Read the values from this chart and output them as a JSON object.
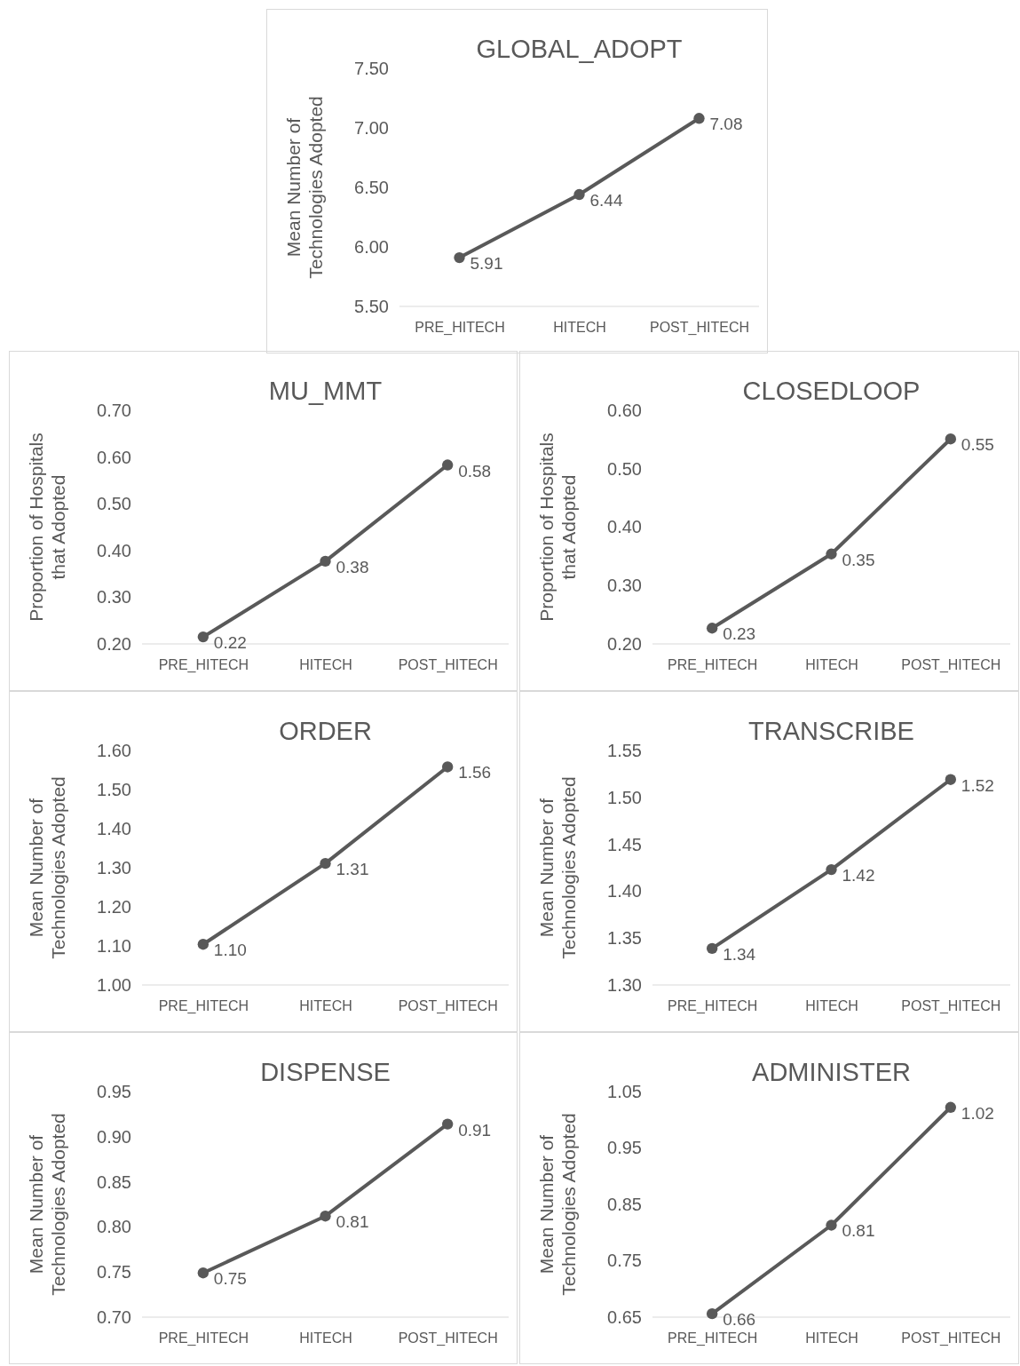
{
  "chart_data": [
    {
      "type": "line",
      "title": "GLOBAL_ADOPT",
      "ylabel": "Mean Number of Technologies Adopted",
      "categories": [
        "PRE_HITECH",
        "HITECH",
        "POST_HITECH"
      ],
      "series": [
        {
          "color": "#595959",
          "values": [
            5.91,
            6.44,
            7.08
          ],
          "value_labels": [
            "5.91",
            "6.44",
            "7.08"
          ]
        }
      ],
      "ylim": [
        5.5,
        7.5
      ],
      "yticks": [
        {
          "value": 5.5,
          "label": "5.50"
        },
        {
          "value": 6,
          "label": "6.00"
        },
        {
          "value": 6.5,
          "label": "6.50"
        },
        {
          "value": 7,
          "label": "7.00"
        },
        {
          "value": 7.5,
          "label": "7.50"
        }
      ],
      "marker": "circle",
      "grid": false
    },
    {
      "type": "line",
      "title": "MU_MMT",
      "ylabel": "Proportion of Hospitals that Adopted",
      "categories": [
        "PRE_HITECH",
        "HITECH",
        "POST_HITECH"
      ],
      "series": [
        {
          "color": "#595959",
          "values": [
            0.215,
            0.377,
            0.583
          ],
          "value_labels": [
            "0.22",
            "0.38",
            "0.58"
          ]
        }
      ],
      "ylim": [
        0.2,
        0.7
      ],
      "yticks": [
        {
          "value": 0.2,
          "label": "0.20"
        },
        {
          "value": 0.3,
          "label": "0.30"
        },
        {
          "value": 0.4,
          "label": "0.40"
        },
        {
          "value": 0.5,
          "label": "0.50"
        },
        {
          "value": 0.6,
          "label": "0.60"
        },
        {
          "value": 0.7,
          "label": "0.70"
        }
      ],
      "marker": "circle",
      "grid": false
    },
    {
      "type": "line",
      "title": "CLOSEDLOOP",
      "ylabel": "Proportion of Hospitals that Adopted",
      "categories": [
        "PRE_HITECH",
        "HITECH",
        "POST_HITECH"
      ],
      "series": [
        {
          "color": "#595959",
          "values": [
            0.227,
            0.354,
            0.551
          ],
          "value_labels": [
            "0.23",
            "0.35",
            "0.55"
          ]
        }
      ],
      "ylim": [
        0.2,
        0.6
      ],
      "yticks": [
        {
          "value": 0.2,
          "label": "0.20"
        },
        {
          "value": 0.3,
          "label": "0.30"
        },
        {
          "value": 0.4,
          "label": "0.40"
        },
        {
          "value": 0.5,
          "label": "0.50"
        },
        {
          "value": 0.6,
          "label": "0.60"
        }
      ],
      "marker": "circle",
      "grid": false
    },
    {
      "type": "line",
      "title": "ORDER",
      "ylabel": "Mean Number of Technologies Adopted",
      "categories": [
        "PRE_HITECH",
        "HITECH",
        "POST_HITECH"
      ],
      "series": [
        {
          "color": "#595959",
          "values": [
            1.104,
            1.311,
            1.558
          ],
          "value_labels": [
            "1.10",
            "1.31",
            "1.56"
          ]
        }
      ],
      "ylim": [
        1.0,
        1.6
      ],
      "yticks": [
        {
          "value": 1.0,
          "label": "1.00"
        },
        {
          "value": 1.1,
          "label": "1.10"
        },
        {
          "value": 1.2,
          "label": "1.20"
        },
        {
          "value": 1.3,
          "label": "1.30"
        },
        {
          "value": 1.4,
          "label": "1.40"
        },
        {
          "value": 1.5,
          "label": "1.50"
        },
        {
          "value": 1.6,
          "label": "1.60"
        }
      ],
      "marker": "circle",
      "grid": false
    },
    {
      "type": "line",
      "title": "TRANSCRIBE",
      "ylabel": "Mean Number of Technologies Adopted",
      "categories": [
        "PRE_HITECH",
        "HITECH",
        "POST_HITECH"
      ],
      "series": [
        {
          "color": "#595959",
          "values": [
            1.339,
            1.423,
            1.519
          ],
          "value_labels": [
            "1.34",
            "1.42",
            "1.52"
          ]
        }
      ],
      "ylim": [
        1.3,
        1.55
      ],
      "yticks": [
        {
          "value": 1.3,
          "label": "1.30"
        },
        {
          "value": 1.35,
          "label": "1.35"
        },
        {
          "value": 1.4,
          "label": "1.40"
        },
        {
          "value": 1.45,
          "label": "1.45"
        },
        {
          "value": 1.5,
          "label": "1.50"
        },
        {
          "value": 1.55,
          "label": "1.55"
        }
      ],
      "marker": "circle",
      "grid": false
    },
    {
      "type": "line",
      "title": "DISPENSE",
      "ylabel": "Mean Number of Technologies Adopted",
      "categories": [
        "PRE_HITECH",
        "HITECH",
        "POST_HITECH"
      ],
      "series": [
        {
          "color": "#595959",
          "values": [
            0.749,
            0.812,
            0.914
          ],
          "value_labels": [
            "0.75",
            "0.81",
            "0.91"
          ]
        }
      ],
      "ylim": [
        0.7,
        0.95
      ],
      "yticks": [
        {
          "value": 0.7,
          "label": "0.70"
        },
        {
          "value": 0.75,
          "label": "0.75"
        },
        {
          "value": 0.8,
          "label": "0.80"
        },
        {
          "value": 0.85,
          "label": "0.85"
        },
        {
          "value": 0.9,
          "label": "0.90"
        },
        {
          "value": 0.95,
          "label": "0.95"
        }
      ],
      "marker": "circle",
      "grid": false
    },
    {
      "type": "line",
      "title": "ADMINISTER",
      "ylabel": "Mean Number of Technologies Adopted",
      "categories": [
        "PRE_HITECH",
        "HITECH",
        "POST_HITECH"
      ],
      "series": [
        {
          "color": "#595959",
          "values": [
            0.656,
            0.813,
            1.022
          ],
          "value_labels": [
            "0.66",
            "0.81",
            "1.02"
          ]
        }
      ],
      "ylim": [
        0.65,
        1.05
      ],
      "yticks": [
        {
          "value": 0.65,
          "label": "0.65"
        },
        {
          "value": 0.75,
          "label": "0.75"
        },
        {
          "value": 0.85,
          "label": "0.85"
        },
        {
          "value": 0.95,
          "label": "0.95"
        },
        {
          "value": 1.05,
          "label": "1.05"
        }
      ],
      "marker": "circle",
      "grid": false
    }
  ]
}
